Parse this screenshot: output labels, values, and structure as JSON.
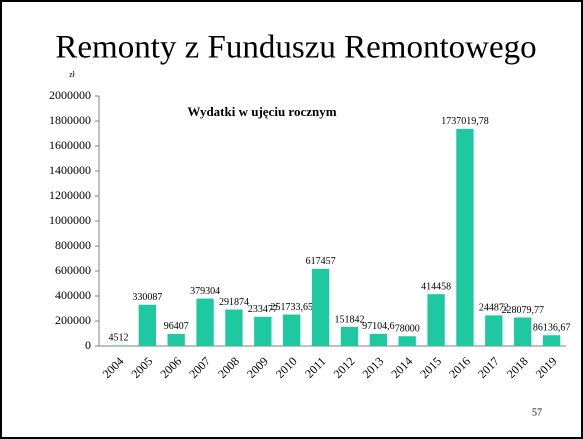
{
  "chart_data": {
    "type": "bar",
    "slide_title": "Remonty z Funduszu Remontowego",
    "title": "Wydatki w ujęciu rocznym",
    "y_label": "zł",
    "page_number": "57",
    "categories": [
      "2004",
      "2005",
      "2006",
      "2007",
      "2008",
      "2009",
      "2010",
      "2011",
      "2012",
      "2013",
      "2014",
      "2015",
      "2016",
      "2017",
      "2018",
      "2019"
    ],
    "values": [
      4512,
      330087,
      96407,
      379304,
      291874,
      233477,
      251733.65,
      617457,
      151842,
      97104.6,
      78000,
      414458,
      1737019.78,
      244872,
      228079.77,
      86136.67
    ],
    "value_labels": [
      "4512",
      "330087",
      "96407",
      "379304",
      "291874",
      "233477",
      "251733,65",
      "617457",
      "151842",
      "97104,6",
      "78000",
      "414458",
      "1737019,78",
      "244872",
      "228079,77",
      "86136,67"
    ],
    "color": "#1ec8a0",
    "ylim": [
      0,
      2000000
    ],
    "yticks": [
      0,
      200000,
      400000,
      600000,
      800000,
      1000000,
      1200000,
      1400000,
      1600000,
      1800000,
      2000000
    ],
    "grid": false
  }
}
